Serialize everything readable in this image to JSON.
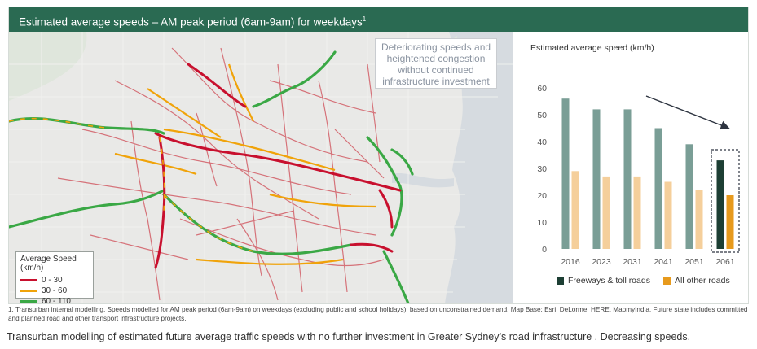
{
  "banner": {
    "title": "Estimated average speeds – AM peak period (6am-9am) for weekdays",
    "footnote_mark": "1"
  },
  "map": {
    "callout": "Deteriorating speeds and heightened congestion without continued infrastructure investment",
    "legend": {
      "title": "Average Speed (km/h)",
      "items": [
        {
          "label": "0 - 30",
          "color": "#c8102e"
        },
        {
          "label": "30 - 60",
          "color": "#f0a30a"
        },
        {
          "label": "60 - 110",
          "color": "#3aa845"
        }
      ]
    }
  },
  "chart_data": {
    "type": "bar",
    "title": "Estimated average speed (km/h)",
    "categories": [
      "2016",
      "2023",
      "2031",
      "2041",
      "2051",
      "2061"
    ],
    "series": [
      {
        "name": "Freeways & toll roads",
        "values": [
          56,
          52,
          52,
          45,
          39,
          33
        ],
        "color": "#7a9e96",
        "highlight_color": "#1d3f34"
      },
      {
        "name": "All other roads",
        "values": [
          29,
          27,
          27,
          25,
          22,
          20
        ],
        "color": "#f5cf9b",
        "highlight_color": "#e79a1d"
      }
    ],
    "highlight_category": "2061",
    "ylim": [
      0,
      60
    ],
    "yticks": [
      0,
      10,
      20,
      30,
      40,
      50,
      60
    ],
    "xlabel": "",
    "ylabel": "",
    "grid": false,
    "legend": "bottom",
    "annotation": "downward-trend-arrow"
  },
  "footnote": "1. Transurban internal modelling. Speeds modelled for AM peak period (6am-9am) on weekdays (excluding public and school holidays), based on unconstrained demand. Map Base: Esri, DeLorme, HERE, MapmyIndia. Future state includes committed and planned road and other transport infrastructure projects.",
  "caption": "Transurban modelling of estimated future average traffic speeds with no further investment in Greater Sydney’s road infrastructure . Decreasing speeds."
}
